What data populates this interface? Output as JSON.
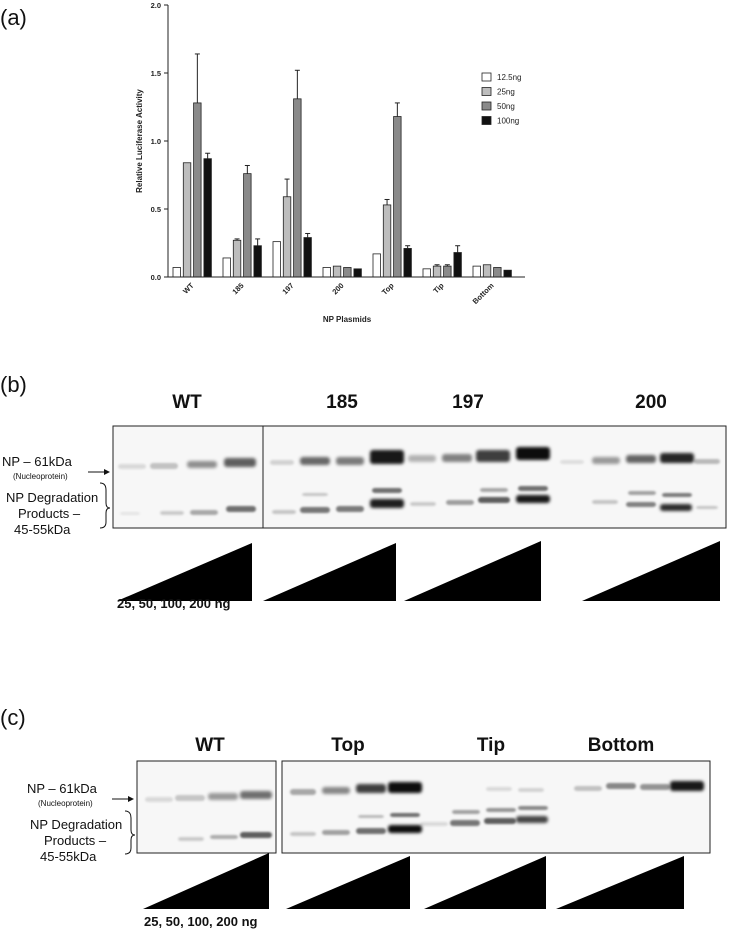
{
  "chart_data": {
    "type": "bar",
    "panel_label": "(a)",
    "categories": [
      "WT",
      "185",
      "197",
      "200",
      "Top",
      "Tip",
      "Bottom"
    ],
    "series": [
      {
        "name": "12.5ng",
        "values": [
          0.07,
          0.14,
          0.26,
          0.07,
          0.17,
          0.06,
          0.08
        ],
        "errors": [
          0,
          0,
          0,
          0,
          0,
          0,
          0
        ]
      },
      {
        "name": "25ng",
        "values": [
          0.84,
          0.27,
          0.59,
          0.08,
          0.53,
          0.08,
          0.09
        ],
        "errors": [
          0,
          0.01,
          0.13,
          0,
          0.04,
          0.01,
          0
        ]
      },
      {
        "name": "50ng",
        "values": [
          1.28,
          0.76,
          1.31,
          0.07,
          1.18,
          0.08,
          0.07
        ],
        "errors": [
          0.36,
          0.06,
          0.21,
          0,
          0.1,
          0.01,
          0
        ]
      },
      {
        "name": "100ng",
        "values": [
          0.87,
          0.23,
          0.29,
          0.06,
          0.21,
          0.18,
          0.05
        ],
        "errors": [
          0.04,
          0.05,
          0.03,
          0,
          0.02,
          0.05,
          0
        ]
      }
    ],
    "colors": [
      "#ffffff",
      "#bdbdbd",
      "#8a8a8a",
      "#111111"
    ],
    "xlabel": "NP Plasmids",
    "ylabel": "Relative Luciferase Activity",
    "ylim": [
      0,
      2.0
    ],
    "yticks": [
      "0.0",
      "0.5",
      "1.0",
      "1.5",
      "2.0"
    ],
    "ytick_values": [
      0,
      0.5,
      1.0,
      1.5,
      2.0
    ],
    "grid": false,
    "legend_position": "right"
  },
  "blot_b": {
    "panel_label": "(b)",
    "headers": [
      "WT",
      "185",
      "197",
      "200"
    ],
    "np_label": "NP – 61kDa",
    "np_sublabel": "(Nucleoprotein)",
    "deg_label_1": "NP Degradation",
    "deg_label_2": "Products –",
    "deg_label_3": "45-55kDa",
    "dose_label": "25, 50, 100, 200 ng"
  },
  "blot_c": {
    "panel_label": "(c)",
    "headers": [
      "WT",
      "Top",
      "Tip",
      "Bottom"
    ],
    "np_label": "NP – 61kDa",
    "np_sublabel": "(Nucleoprotein)",
    "deg_label_1": "NP Degradation",
    "deg_label_2": "Products –",
    "deg_label_3": "45-55kDa",
    "dose_label": "25, 50, 100, 200 ng"
  }
}
